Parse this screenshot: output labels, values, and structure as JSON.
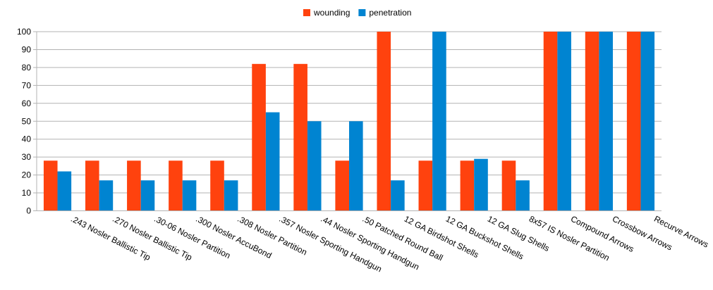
{
  "chart_data": {
    "type": "bar",
    "title": "",
    "xlabel": "",
    "ylabel": "",
    "ylim": [
      0,
      100
    ],
    "yticks": [
      0,
      10,
      20,
      30,
      40,
      50,
      60,
      70,
      80,
      90,
      100
    ],
    "grid": true,
    "legend_position": "top-center",
    "categories": [
      ".243 Nosler Ballistic Tip",
      ".270 Nosler Ballistic Tip",
      ".30-06 Nosler Partition",
      ".300 Nosler AccuBond",
      ".308 Nosler Partition",
      ".357 Nosler Sporting Handgun",
      ".44 Nosler Sporting Handgun",
      ".50 Patched Round Ball",
      "12 GA Birdshot Shells",
      "12 GA Buckshot Shells",
      "12 GA Slug Shells",
      "8x57 IS Nosler Partition",
      "Compound Arrows",
      "Crossbow Arrows",
      "Recurve Arrows"
    ],
    "series": [
      {
        "name": "wounding",
        "color": "#ff420e",
        "values": [
          28,
          28,
          28,
          28,
          28,
          82,
          82,
          28,
          100,
          28,
          28,
          28,
          100,
          100,
          100
        ]
      },
      {
        "name": "penetration",
        "color": "#0084d1",
        "values": [
          22,
          17,
          17,
          17,
          17,
          55,
          50,
          50,
          17,
          100,
          29,
          17,
          100,
          100,
          100
        ]
      }
    ]
  }
}
